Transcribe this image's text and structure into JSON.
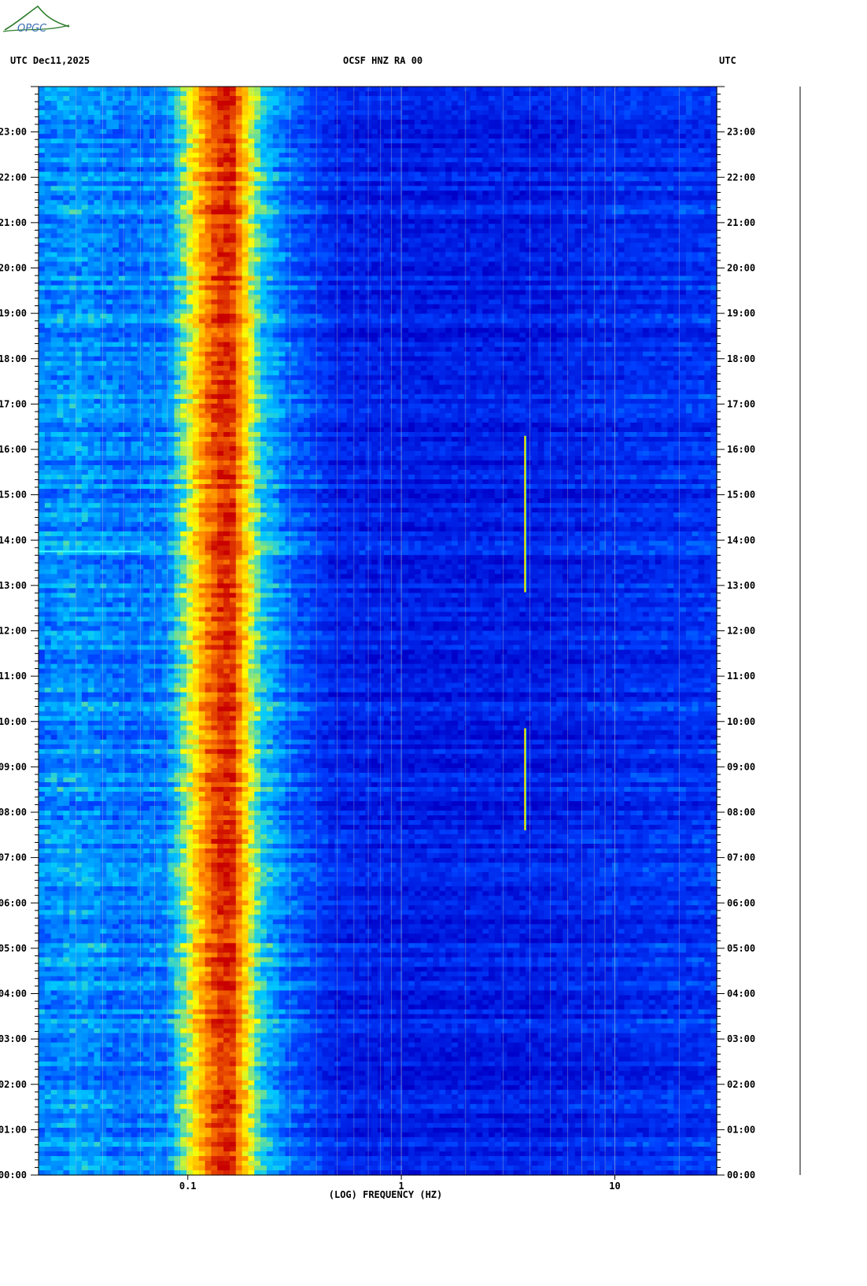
{
  "header": {
    "left": "UTC  Dec11,2025",
    "center": "OCSF HNZ RA 00",
    "right": "UTC"
  },
  "logo": {
    "text": "OPGC"
  },
  "chart_data": {
    "type": "heatmap",
    "title": "OCSF HNZ RA 00",
    "xlabel": "(LOG) FREQUENCY (HZ)",
    "ylabel": "UTC",
    "x_scale": "log",
    "xlim": [
      0.02,
      30
    ],
    "ylim": [
      0,
      24
    ],
    "x_ticks": [
      {
        "value": 0.1,
        "label": "0.1"
      },
      {
        "value": 1,
        "label": "1"
      },
      {
        "value": 10,
        "label": "10"
      }
    ],
    "y_ticks": [
      {
        "value": 0,
        "label": "00:00"
      },
      {
        "value": 1,
        "label": "01:00"
      },
      {
        "value": 2,
        "label": "02:00"
      },
      {
        "value": 3,
        "label": "03:00"
      },
      {
        "value": 4,
        "label": "04:00"
      },
      {
        "value": 5,
        "label": "05:00"
      },
      {
        "value": 6,
        "label": "06:00"
      },
      {
        "value": 7,
        "label": "07:00"
      },
      {
        "value": 8,
        "label": "08:00"
      },
      {
        "value": 9,
        "label": "09:00"
      },
      {
        "value": 10,
        "label": "10:00"
      },
      {
        "value": 11,
        "label": "11:00"
      },
      {
        "value": 12,
        "label": "12:00"
      },
      {
        "value": 13,
        "label": "13:00"
      },
      {
        "value": 14,
        "label": "14:00"
      },
      {
        "value": 15,
        "label": "15:00"
      },
      {
        "value": 16,
        "label": "16:00"
      },
      {
        "value": 17,
        "label": "17:00"
      },
      {
        "value": 18,
        "label": "18:00"
      },
      {
        "value": 19,
        "label": "19:00"
      },
      {
        "value": 20,
        "label": "20:00"
      },
      {
        "value": 21,
        "label": "21:00"
      },
      {
        "value": 22,
        "label": "22:00"
      },
      {
        "value": 23,
        "label": "23:00"
      }
    ],
    "spectrum_profile": [
      {
        "freq": 0.02,
        "level": 0.3
      },
      {
        "freq": 0.03,
        "level": 0.34
      },
      {
        "freq": 0.05,
        "level": 0.28
      },
      {
        "freq": 0.08,
        "level": 0.3
      },
      {
        "freq": 0.1,
        "level": 0.55
      },
      {
        "freq": 0.12,
        "level": 0.78
      },
      {
        "freq": 0.14,
        "level": 0.92
      },
      {
        "freq": 0.16,
        "level": 0.95
      },
      {
        "freq": 0.18,
        "level": 0.72
      },
      {
        "freq": 0.22,
        "level": 0.42
      },
      {
        "freq": 0.3,
        "level": 0.26
      },
      {
        "freq": 0.5,
        "level": 0.12
      },
      {
        "freq": 1.0,
        "level": 0.1
      },
      {
        "freq": 5.0,
        "level": 0.1
      },
      {
        "freq": 10.0,
        "level": 0.14
      },
      {
        "freq": 30.0,
        "level": 0.16
      }
    ],
    "events": [
      {
        "freq": 3.8,
        "t_start": 12.85,
        "t_end": 16.3
      },
      {
        "freq": 3.8,
        "t_start": 7.6,
        "t_end": 9.85
      },
      {
        "freq": 0.04,
        "t_start": 13.75,
        "t_end": 13.8
      }
    ],
    "colormap": [
      "#0000c8",
      "#0040ff",
      "#00c8ff",
      "#ffff00",
      "#ff8000",
      "#c80000"
    ]
  }
}
